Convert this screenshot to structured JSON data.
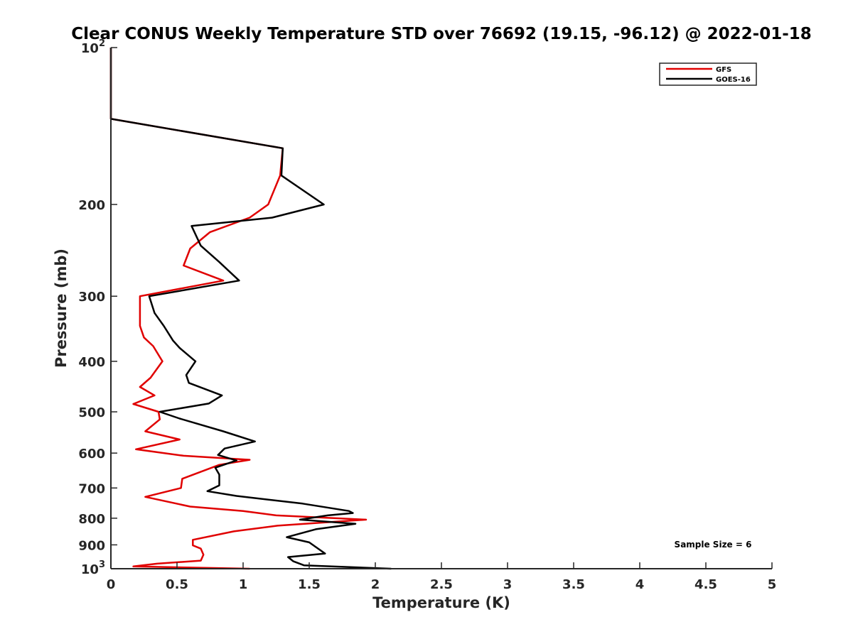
{
  "chart_data": {
    "type": "line",
    "title": "Clear CONUS Weekly Temperature STD over 76692 (19.15, -96.12) @ 2022-01-18",
    "xlabel": "Temperature (K)",
    "ylabel": "Pressure (mb)",
    "xlim": [
      0,
      5
    ],
    "ylim": [
      100,
      1000
    ],
    "y_scale": "log",
    "y_reversed": true,
    "grid": false,
    "legend_position": "top-right",
    "x_ticks": [
      {
        "value": 0,
        "label": "0"
      },
      {
        "value": 0.5,
        "label": "0.5"
      },
      {
        "value": 1,
        "label": "1"
      },
      {
        "value": 1.5,
        "label": "1.5"
      },
      {
        "value": 2,
        "label": "2"
      },
      {
        "value": 2.5,
        "label": "2.5"
      },
      {
        "value": 3,
        "label": "3"
      },
      {
        "value": 3.5,
        "label": "3.5"
      },
      {
        "value": 4,
        "label": "4"
      },
      {
        "value": 4.5,
        "label": "4.5"
      },
      {
        "value": 5,
        "label": "5"
      }
    ],
    "y_ticks": [
      {
        "value": 100,
        "label": "10",
        "sup": "2"
      },
      {
        "value": 200,
        "label": "200",
        "sup": ""
      },
      {
        "value": 300,
        "label": "300",
        "sup": ""
      },
      {
        "value": 400,
        "label": "400",
        "sup": ""
      },
      {
        "value": 500,
        "label": "500",
        "sup": ""
      },
      {
        "value": 600,
        "label": "600",
        "sup": ""
      },
      {
        "value": 700,
        "label": "700",
        "sup": ""
      },
      {
        "value": 800,
        "label": "800",
        "sup": ""
      },
      {
        "value": 900,
        "label": "900",
        "sup": ""
      },
      {
        "value": 1000,
        "label": "10",
        "sup": "3"
      }
    ],
    "series": [
      {
        "name": "GFS",
        "color": "#e00000",
        "points": [
          [
            0.0,
            100
          ],
          [
            0.0,
            137
          ],
          [
            1.3,
            156
          ],
          [
            1.28,
            176
          ],
          [
            1.19,
            200
          ],
          [
            1.05,
            212
          ],
          [
            0.75,
            226
          ],
          [
            0.6,
            243
          ],
          [
            0.55,
            262
          ],
          [
            0.85,
            280
          ],
          [
            0.22,
            300
          ],
          [
            0.22,
            325
          ],
          [
            0.22,
            342
          ],
          [
            0.25,
            360
          ],
          [
            0.32,
            374
          ],
          [
            0.39,
            400
          ],
          [
            0.3,
            430
          ],
          [
            0.22,
            448
          ],
          [
            0.33,
            465
          ],
          [
            0.17,
            483
          ],
          [
            0.36,
            500
          ],
          [
            0.37,
            517
          ],
          [
            0.26,
            545
          ],
          [
            0.52,
            565
          ],
          [
            0.19,
            590
          ],
          [
            0.55,
            607
          ],
          [
            1.05,
            618
          ],
          [
            0.82,
            632
          ],
          [
            0.54,
            672
          ],
          [
            0.53,
            700
          ],
          [
            0.26,
            728
          ],
          [
            0.6,
            760
          ],
          [
            1.0,
            775
          ],
          [
            1.25,
            790
          ],
          [
            1.93,
            805
          ],
          [
            1.26,
            827
          ],
          [
            0.93,
            848
          ],
          [
            0.62,
            880
          ],
          [
            0.62,
            902
          ],
          [
            0.68,
            915
          ],
          [
            0.7,
            940
          ],
          [
            0.68,
            965
          ],
          [
            0.35,
            978
          ],
          [
            0.17,
            990
          ],
          [
            1.05,
            1000
          ]
        ]
      },
      {
        "name": "GOES-16",
        "color": "#000000",
        "points": [
          [
            0.0,
            100
          ],
          [
            0.0,
            137
          ],
          [
            1.3,
            156
          ],
          [
            1.29,
            176
          ],
          [
            1.61,
            200
          ],
          [
            1.22,
            212
          ],
          [
            0.61,
            220
          ],
          [
            0.68,
            240
          ],
          [
            0.82,
            258
          ],
          [
            0.97,
            280
          ],
          [
            0.29,
            300
          ],
          [
            0.33,
            323
          ],
          [
            0.4,
            342
          ],
          [
            0.47,
            365
          ],
          [
            0.52,
            377
          ],
          [
            0.64,
            400
          ],
          [
            0.57,
            425
          ],
          [
            0.59,
            440
          ],
          [
            0.84,
            465
          ],
          [
            0.74,
            482
          ],
          [
            0.37,
            500
          ],
          [
            0.52,
            515
          ],
          [
            0.85,
            545
          ],
          [
            1.09,
            570
          ],
          [
            0.86,
            588
          ],
          [
            0.81,
            605
          ],
          [
            0.95,
            620
          ],
          [
            0.79,
            640
          ],
          [
            0.82,
            660
          ],
          [
            0.82,
            692
          ],
          [
            0.73,
            710
          ],
          [
            0.95,
            725
          ],
          [
            1.45,
            750
          ],
          [
            1.8,
            775
          ],
          [
            1.83,
            782
          ],
          [
            1.64,
            790
          ],
          [
            1.43,
            805
          ],
          [
            1.85,
            820
          ],
          [
            1.55,
            840
          ],
          [
            1.33,
            870
          ],
          [
            1.5,
            890
          ],
          [
            1.62,
            935
          ],
          [
            1.34,
            950
          ],
          [
            1.38,
            968
          ],
          [
            1.46,
            985
          ],
          [
            2.12,
            1000
          ]
        ]
      }
    ],
    "annotation": "Sample Size = 6"
  }
}
